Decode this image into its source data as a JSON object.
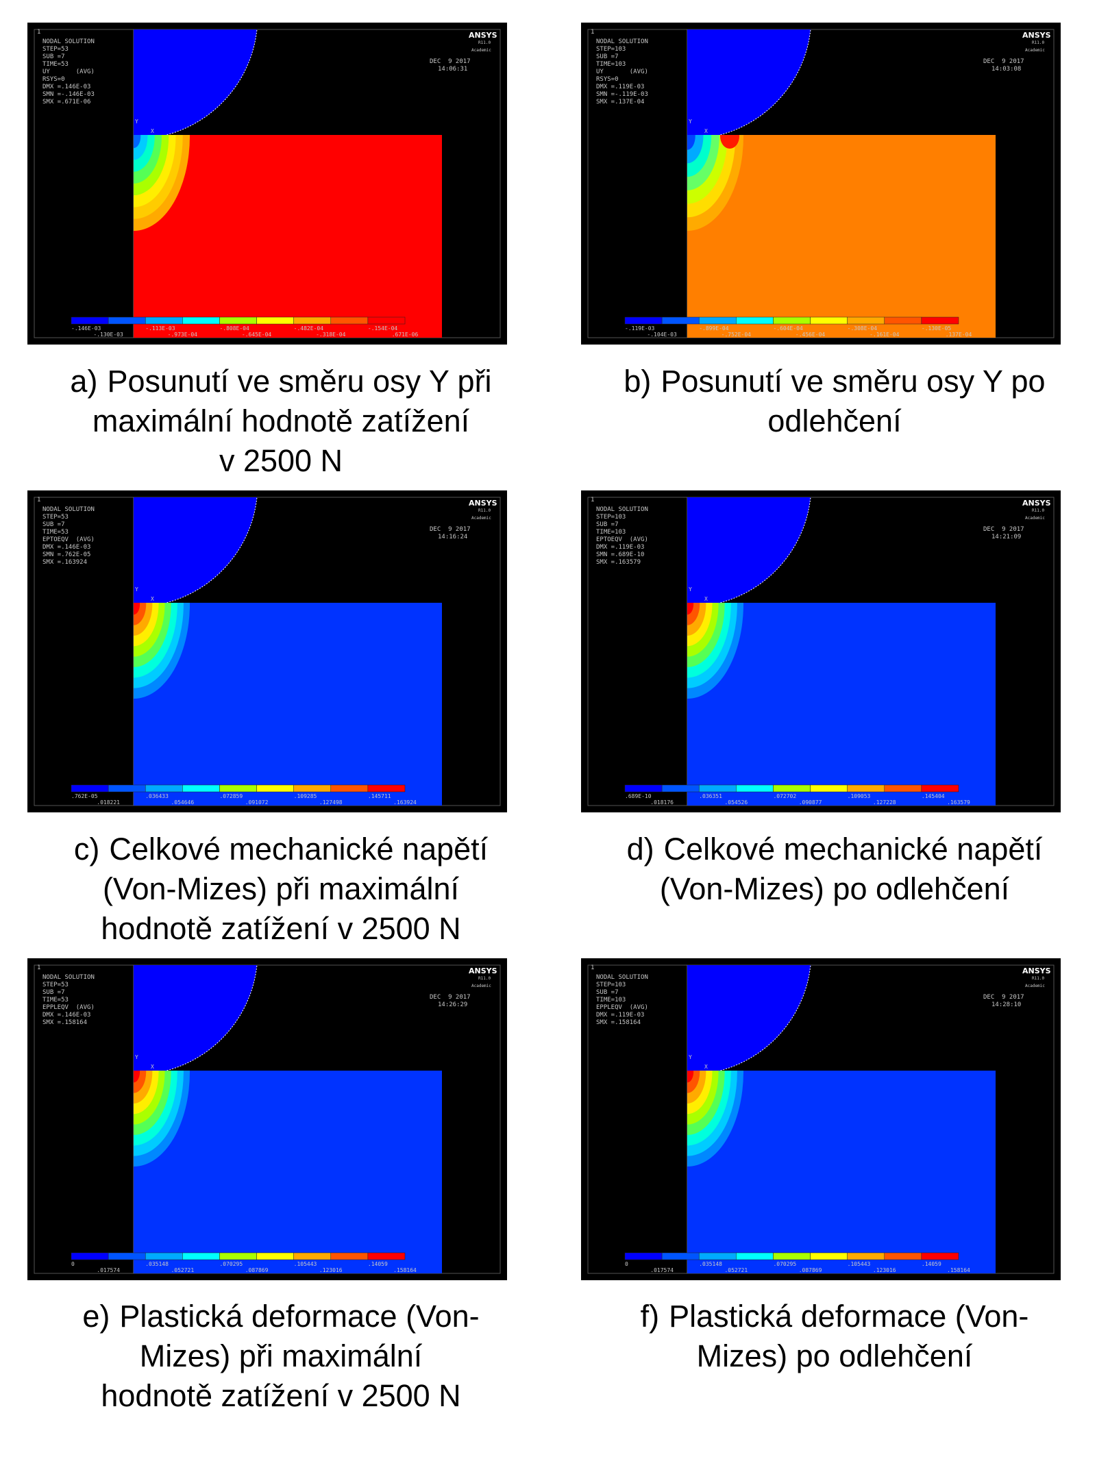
{
  "common": {
    "window_number": "1",
    "logo": "ANSYS",
    "release": "R11.0",
    "edition": "Academic",
    "date": "DEC  9 2017",
    "axis_x": "X",
    "axis_y": "Y"
  },
  "panels": [
    {
      "info": [
        "NODAL SOLUTION",
        "STEP=53",
        "SUB =7",
        "TIME=53",
        "UY       (AVG)",
        "RSYS=0",
        "DMX =.146E-03",
        "SMN =-.146E-03",
        "SMX =.671E-06"
      ],
      "time": "14:06:31",
      "legend_top": [
        "-.146E-03",
        "-.113E-03",
        "-.808E-04",
        "-.482E-04",
        "-.154E-04"
      ],
      "legend_bottom": [
        "-.130E-03",
        "-.973E-04",
        "-.645E-04",
        "-.318E-04",
        ".671E-06"
      ],
      "caption": {
        "label": "a)",
        "lines": [
          "Posunutí ve směru osy Y při",
          "maximální hodnotě zatížení",
          "v 2500 N"
        ]
      }
    },
    {
      "info": [
        "NODAL SOLUTION",
        "STEP=103",
        "SUB =7",
        "TIME=103",
        "UY       (AVG)",
        "RSYS=0",
        "DMX =.119E-03",
        "SMN =-.119E-03",
        "SMX =.137E-04"
      ],
      "time": "14:03:08",
      "legend_top": [
        "-.119E-03",
        "-.899E-04",
        "-.604E-04",
        "-.308E-04",
        "-.130E-05"
      ],
      "legend_bottom": [
        "-.104E-03",
        "-.752E-04",
        "-.456E-04",
        "-.161E-04",
        ".137E-04"
      ],
      "caption": {
        "label": "b)",
        "lines": [
          "Posunutí ve směru osy Y po",
          "odlehčení"
        ]
      }
    },
    {
      "info": [
        "NODAL SOLUTION",
        "STEP=53",
        "SUB =7",
        "TIME=53",
        "EPTOEQV  (AVG)",
        "DMX =.146E-03",
        "SMN =.762E-05",
        "SMX =.163924"
      ],
      "time": "14:16:24",
      "legend_top": [
        ".762E-05",
        ".036433",
        ".072859",
        ".109285",
        ".145711"
      ],
      "legend_bottom": [
        ".018221",
        ".054646",
        ".091072",
        ".127498",
        ".163924"
      ],
      "caption": {
        "label": "c)",
        "lines": [
          "Celkové mechanické napětí",
          "(Von-Mizes) při maximální",
          "hodnotě zatížení v 2500 N"
        ]
      }
    },
    {
      "info": [
        "NODAL SOLUTION",
        "STEP=103",
        "SUB =7",
        "TIME=103",
        "EPTOEQV  (AVG)",
        "DMX =.119E-03",
        "SMN =.689E-10",
        "SMX =.163579"
      ],
      "time": "14:21:09",
      "legend_top": [
        ".689E-10",
        ".036351",
        ".072702",
        ".109053",
        ".145404"
      ],
      "legend_bottom": [
        ".018176",
        ".054526",
        ".090877",
        ".127228",
        ".163579"
      ],
      "caption": {
        "label": "d)",
        "lines": [
          "Celkové mechanické napětí",
          "(Von-Mizes) po odlehčení"
        ]
      }
    },
    {
      "info": [
        "NODAL SOLUTION",
        "STEP=53",
        "SUB =7",
        "TIME=53",
        "EPPLEQV  (AVG)",
        "DMX =.146E-03",
        "SMX =.158164"
      ],
      "time": "14:26:29",
      "legend_top": [
        "0",
        ".035148",
        ".070295",
        ".105443",
        ".14059"
      ],
      "legend_bottom": [
        ".017574",
        ".052721",
        ".087869",
        ".123016",
        ".158164"
      ],
      "caption": {
        "label": "e)",
        "lines": [
          "Plastická deformace (Von-",
          "Mizes) při maximální",
          "hodnotě zatížení v 2500 N"
        ]
      }
    },
    {
      "info": [
        "NODAL SOLUTION",
        "STEP=103",
        "SUB =7",
        "TIME=103",
        "EPPLEQV  (AVG)",
        "DMX =.119E-03",
        "SMX =.158164"
      ],
      "time": "14:28:10",
      "legend_top": [
        "0",
        ".035148",
        ".070295",
        ".105443",
        ".14059"
      ],
      "legend_bottom": [
        ".017574",
        ".052721",
        ".087869",
        ".123016",
        ".158164"
      ],
      "caption": {
        "label": "f)",
        "lines": [
          "Plastická deformace (Von-",
          "Mizes) po odlehčení"
        ]
      }
    }
  ]
}
